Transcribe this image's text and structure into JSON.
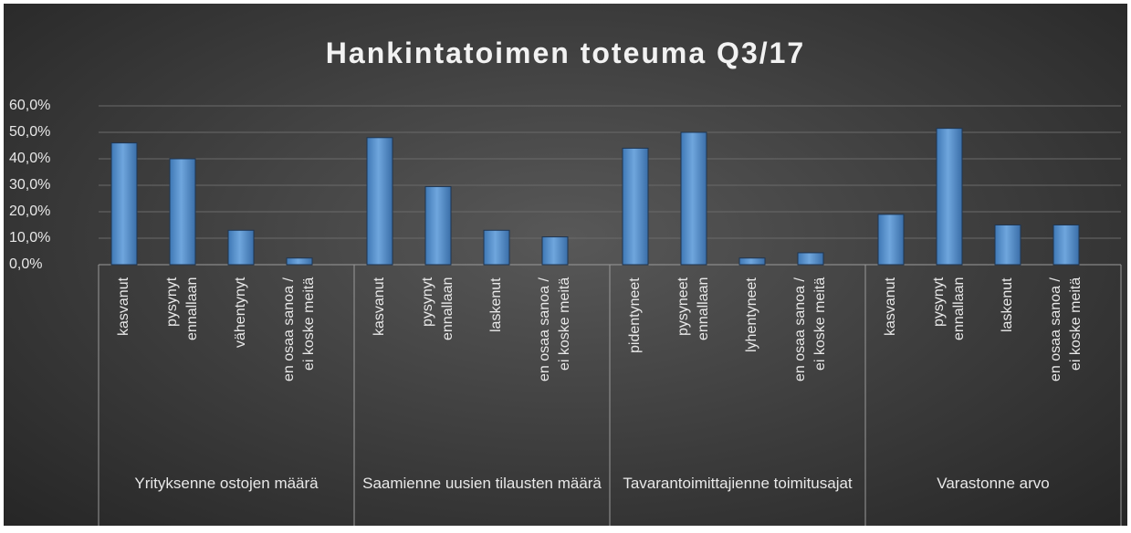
{
  "chart_data": {
    "type": "bar",
    "title": "Hankintatoimen toteuma Q3/17",
    "groups": [
      "Yrityksenne ostojen määrä",
      "Saamienne uusien tilausten määrä",
      "Tavarantoimittajienne toimitusajat",
      "Varastonne arvo"
    ],
    "categories": [
      "kasvanut",
      "pysynyt ennallaan",
      "vähentynyt",
      "en osaa sanoa / ei koske meitä",
      "kasvanut",
      "pysynyt ennallaan",
      "laskenut",
      "en osaa sanoa / ei koske meitä",
      "pidentyneet",
      "pysyneet ennallaan",
      "lyhentyneet",
      "en osaa sanoa / ei koske meitä",
      "kasvanut",
      "pysynyt ennallaan",
      "laskenut",
      "en osaa sanoa / ei koske meitä"
    ],
    "values": [
      46,
      40,
      13,
      2.5,
      48,
      29.5,
      13,
      10.5,
      44,
      50,
      2.5,
      4.5,
      19,
      51.5,
      15,
      15
    ],
    "color": "#5b9bd5",
    "ylim": [
      0,
      60
    ],
    "yticks": [
      {
        "value": 0,
        "label": "0,0%"
      },
      {
        "value": 10,
        "label": "10,0%"
      },
      {
        "value": 20,
        "label": "20,0%"
      },
      {
        "value": 30,
        "label": "30,0%"
      },
      {
        "value": 40,
        "label": "40,0%"
      },
      {
        "value": 50,
        "label": "50,0%"
      },
      {
        "value": 60,
        "label": "60,0%"
      }
    ],
    "grid": true
  }
}
